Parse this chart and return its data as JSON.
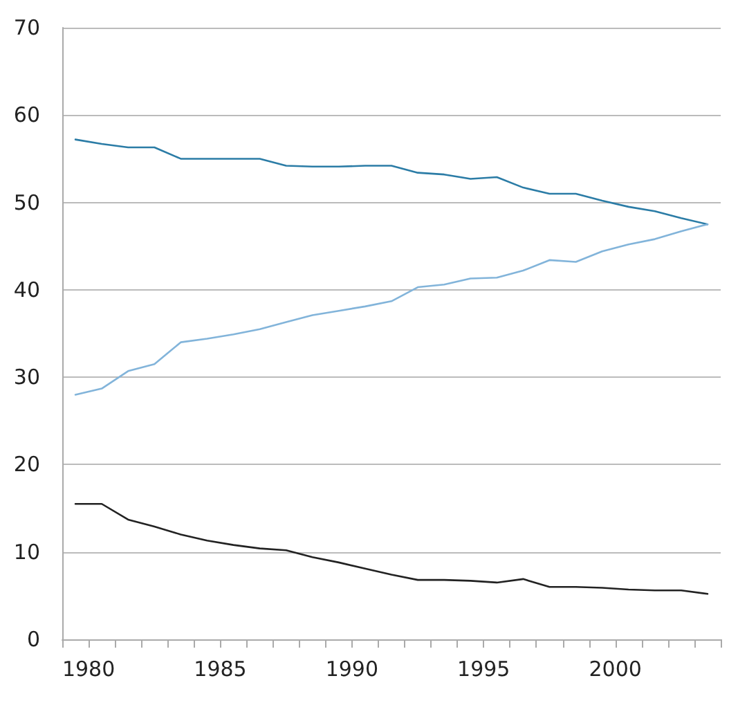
{
  "chart_data": {
    "type": "line",
    "x": [
      1979.5,
      1980.5,
      1981.5,
      1982.5,
      1983.5,
      1984.5,
      1985.5,
      1986.5,
      1987.5,
      1988.5,
      1989.5,
      1990.5,
      1991.5,
      1992.5,
      1993.5,
      1994.5,
      1995.5,
      1996.5,
      1997.5,
      1998.5,
      1999.5,
      2000.5,
      2001.5,
      2002.5,
      2003.5
    ],
    "series": [
      {
        "color": "#2b7ca6",
        "values": [
          57.2,
          56.7,
          56.3,
          56.3,
          55.0,
          55.0,
          55.0,
          55.0,
          54.2,
          54.1,
          54.1,
          54.2,
          54.2,
          53.4,
          53.2,
          52.7,
          52.9,
          51.7,
          51.0,
          51.0,
          50.2,
          49.5,
          49.0,
          48.2,
          47.5
        ]
      },
      {
        "color": "#82b4da",
        "values": [
          28.0,
          28.7,
          30.7,
          31.5,
          34.0,
          34.4,
          34.9,
          35.5,
          36.3,
          37.1,
          37.6,
          38.1,
          38.7,
          40.3,
          40.6,
          41.3,
          41.4,
          42.2,
          43.4,
          43.2,
          44.4,
          45.2,
          45.8,
          46.7,
          47.5
        ]
      },
      {
        "color": "#222222",
        "values": [
          15.5,
          15.5,
          13.7,
          12.9,
          12.0,
          11.3,
          10.8,
          10.4,
          10.2,
          9.4,
          8.8,
          8.1,
          7.4,
          6.8,
          6.8,
          6.7,
          6.5,
          6.9,
          6.0,
          6.0,
          5.9,
          5.7,
          5.6,
          5.6,
          5.2
        ]
      }
    ],
    "xlim": [
      1979,
      2004
    ],
    "xticks": [
      {
        "value": 1979,
        "label": null
      },
      1980,
      {
        "value": 1981,
        "label": null
      },
      {
        "value": 1982,
        "label": null
      },
      {
        "value": 1983,
        "label": null
      },
      {
        "value": 1984,
        "label": null
      },
      1985,
      {
        "value": 1986,
        "label": null
      },
      {
        "value": 1987,
        "label": null
      },
      {
        "value": 1988,
        "label": null
      },
      {
        "value": 1989,
        "label": null
      },
      1990,
      {
        "value": 1991,
        "label": null
      },
      {
        "value": 1992,
        "label": null
      },
      {
        "value": 1993,
        "label": null
      },
      {
        "value": 1994,
        "label": null
      },
      1995,
      {
        "value": 1996,
        "label": null
      },
      {
        "value": 1997,
        "label": null
      },
      {
        "value": 1998,
        "label": null
      },
      {
        "value": 1999,
        "label": null
      },
      2000,
      {
        "value": 2001,
        "label": null
      },
      {
        "value": 2002,
        "label": null
      },
      {
        "value": 2003,
        "label": null
      },
      {
        "value": 2004,
        "label": null
      }
    ],
    "ylim": [
      0,
      70
    ],
    "yticks": [
      0,
      10,
      20,
      30,
      40,
      50,
      60,
      70
    ],
    "grid": "y",
    "marker": "none",
    "line_style": "solid"
  }
}
